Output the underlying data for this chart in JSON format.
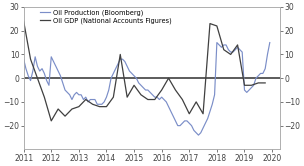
{
  "legend_labels": [
    "Oil Production (Bloomberg)",
    "Oil GDP (National Accounts Figures)"
  ],
  "ylim": [
    -30,
    30
  ],
  "yticks_left": [
    -20,
    -10,
    0,
    10,
    20,
    30
  ],
  "yticks_right": [
    -20,
    -10,
    0,
    10,
    20,
    30
  ],
  "xlim_start": 2011.0,
  "xlim_end": 2020.3,
  "xticks": [
    2011,
    2012,
    2013,
    2014,
    2015,
    2016,
    2017,
    2018,
    2019,
    2020
  ],
  "blue_x": [
    2011.0,
    2011.083,
    2011.167,
    2011.25,
    2011.333,
    2011.417,
    2011.5,
    2011.583,
    2011.667,
    2011.75,
    2011.833,
    2011.917,
    2012.0,
    2012.083,
    2012.167,
    2012.25,
    2012.333,
    2012.417,
    2012.5,
    2012.583,
    2012.667,
    2012.75,
    2012.833,
    2012.917,
    2013.0,
    2013.083,
    2013.167,
    2013.25,
    2013.333,
    2013.417,
    2013.5,
    2013.583,
    2013.667,
    2013.75,
    2013.833,
    2013.917,
    2014.0,
    2014.083,
    2014.167,
    2014.25,
    2014.333,
    2014.417,
    2014.5,
    2014.583,
    2014.667,
    2014.75,
    2014.833,
    2014.917,
    2015.0,
    2015.083,
    2015.167,
    2015.25,
    2015.333,
    2015.417,
    2015.5,
    2015.583,
    2015.667,
    2015.75,
    2015.833,
    2015.917,
    2016.0,
    2016.083,
    2016.167,
    2016.25,
    2016.333,
    2016.417,
    2016.5,
    2016.583,
    2016.667,
    2016.75,
    2016.833,
    2016.917,
    2017.0,
    2017.083,
    2017.167,
    2017.25,
    2017.333,
    2017.417,
    2017.5,
    2017.583,
    2017.667,
    2017.75,
    2017.833,
    2017.917,
    2018.0,
    2018.083,
    2018.167,
    2018.25,
    2018.333,
    2018.417,
    2018.5,
    2018.583,
    2018.667,
    2018.75,
    2018.833,
    2018.917,
    2019.0,
    2019.083,
    2019.167,
    2019.25,
    2019.333,
    2019.417,
    2019.5,
    2019.583,
    2019.667,
    2019.75,
    2019.833,
    2019.917
  ],
  "blue_y": [
    8,
    4,
    1,
    -1,
    3,
    9,
    5,
    3,
    4,
    2,
    -1,
    -3,
    9,
    7,
    5,
    3,
    1,
    -2,
    -5,
    -6,
    -7,
    -9,
    -7,
    -6,
    -7,
    -7,
    -9,
    -8,
    -10,
    -9,
    -9,
    -9,
    -11,
    -11,
    -11,
    -10,
    -8,
    -5,
    0,
    2,
    4,
    6,
    8,
    8,
    7,
    5,
    3,
    2,
    1,
    0,
    -2,
    -3,
    -4,
    -5,
    -5,
    -6,
    -7,
    -8,
    -8,
    -9,
    -8,
    -9,
    -10,
    -12,
    -14,
    -16,
    -18,
    -20,
    -20,
    -19,
    -18,
    -18,
    -19,
    -20,
    -22,
    -23,
    -24,
    -23,
    -21,
    -19,
    -17,
    -14,
    -11,
    -7,
    15,
    14,
    13,
    14,
    14,
    12,
    11,
    11,
    12,
    13,
    12,
    11,
    -5,
    -6,
    -5,
    -4,
    -3,
    0,
    1,
    2,
    2,
    4,
    10,
    15
  ],
  "black_x": [
    2011.0,
    2011.25,
    2011.5,
    2011.75,
    2012.0,
    2012.25,
    2012.5,
    2012.75,
    2013.0,
    2013.25,
    2013.5,
    2013.75,
    2014.0,
    2014.25,
    2014.5,
    2014.75,
    2015.0,
    2015.25,
    2015.5,
    2015.75,
    2016.0,
    2016.25,
    2016.5,
    2016.75,
    2017.0,
    2017.25,
    2017.5,
    2017.75,
    2018.0,
    2018.25,
    2018.5,
    2018.75,
    2019.0,
    2019.25,
    2019.5,
    2019.75
  ],
  "black_y": [
    24,
    8,
    0,
    -8,
    -18,
    -13,
    -16,
    -13,
    -12,
    -9,
    -11,
    -12,
    -12,
    -8,
    10,
    -8,
    -3,
    -7,
    -9,
    -9,
    -5,
    0,
    -5,
    -9,
    -15,
    -10,
    -15,
    23,
    22,
    12,
    10,
    14,
    -3,
    -3,
    -2,
    -2
  ],
  "bg_color": "#ffffff",
  "line_color_blue": "#7b8ec8",
  "line_color_black": "#404040",
  "zero_line_color": "#404040",
  "spine_color": "#aaaaaa",
  "tick_color": "#444444",
  "tick_fontsize": 5.5,
  "linewidth_blue": 0.85,
  "linewidth_black": 0.9,
  "linewidth_zero": 1.2,
  "legend_fontsize": 4.8
}
